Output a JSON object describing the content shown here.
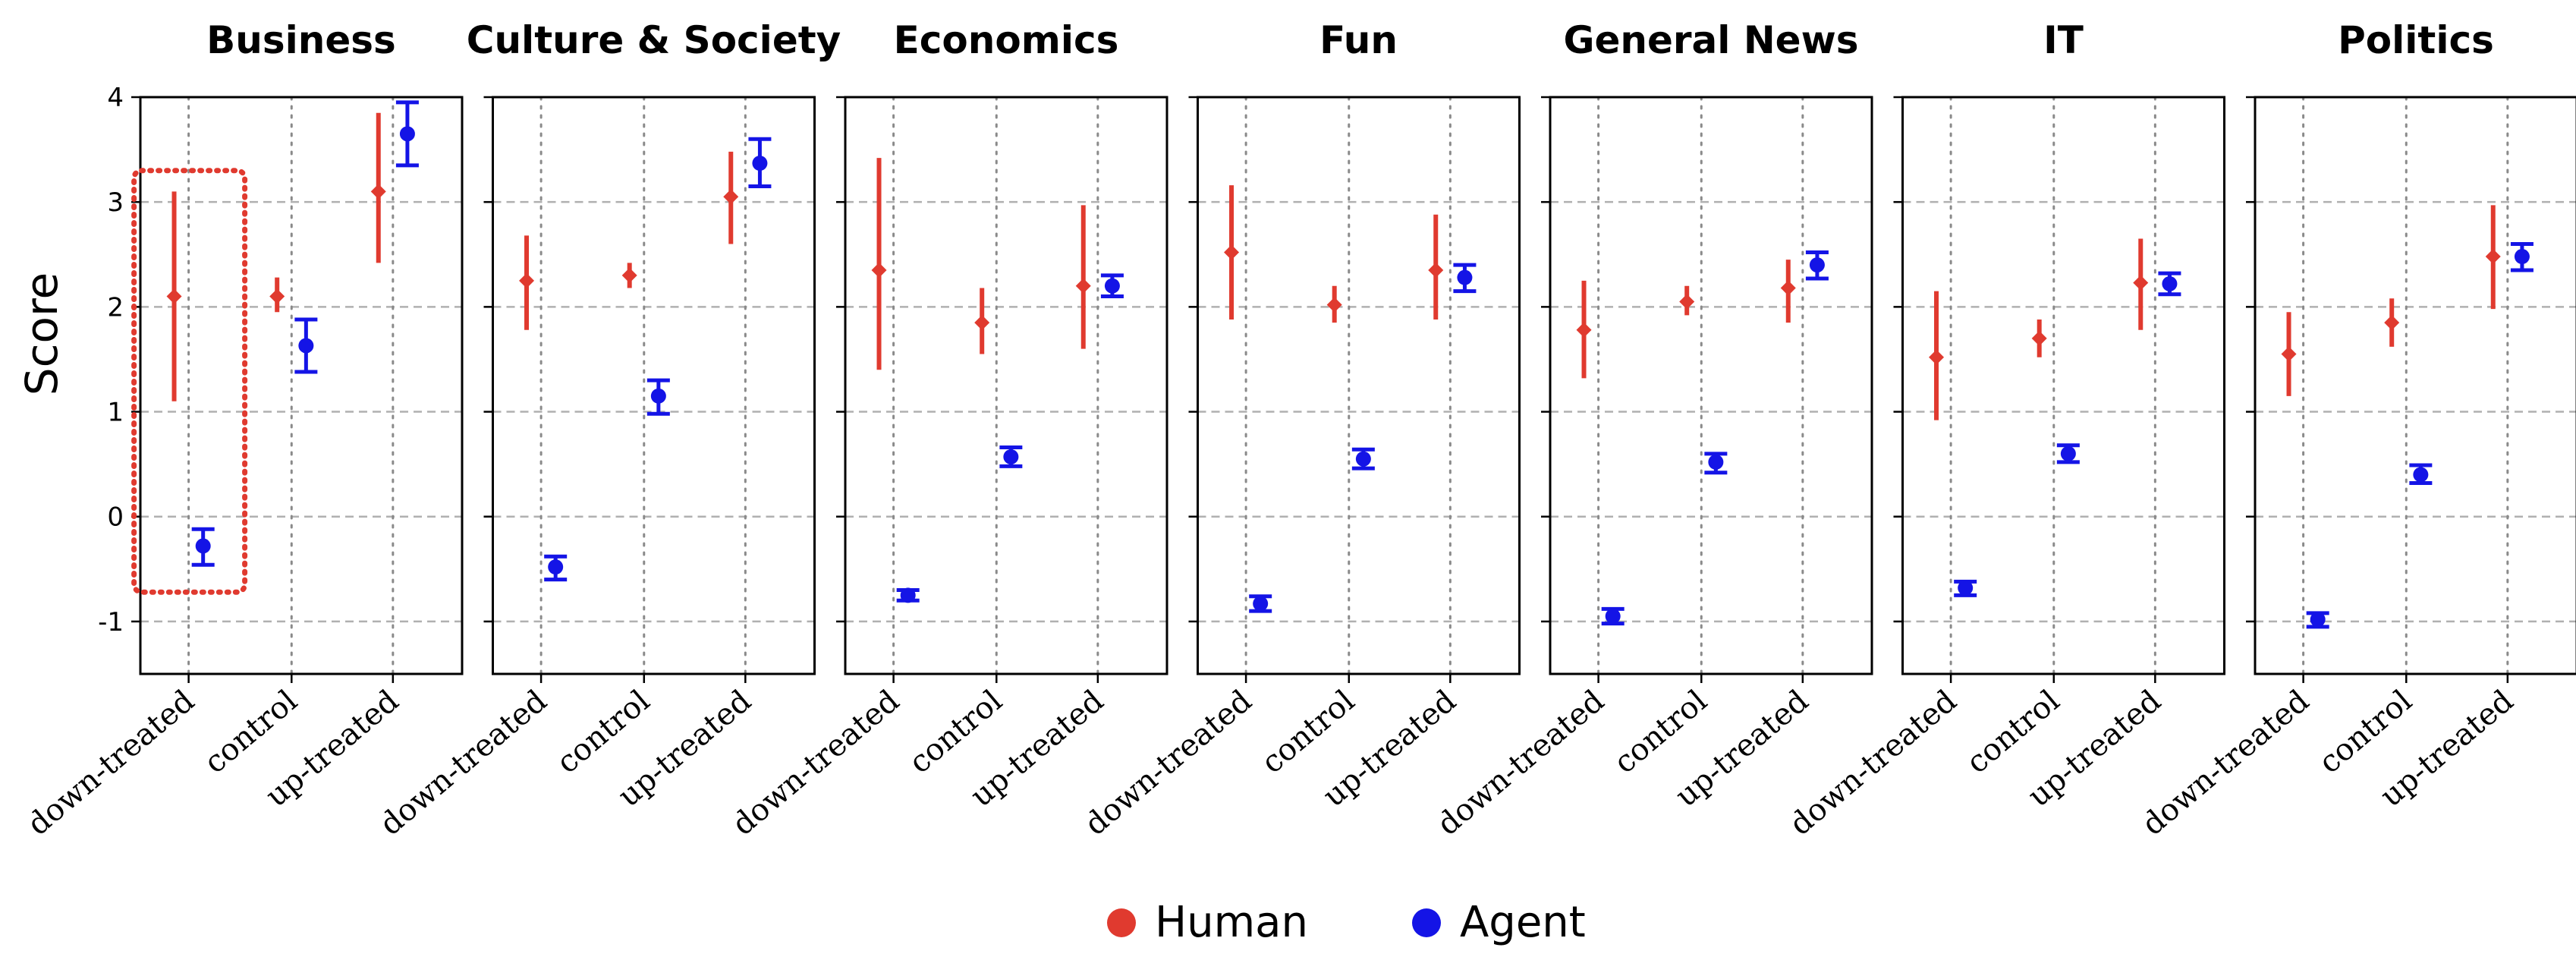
{
  "chart_data": {
    "type": "scatter",
    "ylabel": "Score",
    "ylim": [
      -1.5,
      4
    ],
    "yticks": [
      -1,
      0,
      1,
      2,
      3,
      4
    ],
    "ytick_labels": [
      "-1",
      "0",
      "1",
      "2",
      "3",
      "4"
    ],
    "categories": [
      "down-treated",
      "control",
      "up-treated"
    ],
    "grid": "dashed horizontal and dotted vertical",
    "legend_position": "bottom-center",
    "highlight": {
      "panel": "Business",
      "category": "down-treated",
      "style": "red dotted box"
    },
    "colors": {
      "Human": "#e03a2f",
      "Agent": "#1414e6",
      "highlight": "#e03a2f"
    },
    "series": [
      {
        "name": "Human",
        "marker": "diamond",
        "error_bar": "line"
      },
      {
        "name": "Agent",
        "marker": "circle",
        "error_bar": "capped"
      }
    ],
    "panels": [
      {
        "title": "Business",
        "Human": [
          {
            "mean": 2.1,
            "lo": 1.1,
            "hi": 3.1
          },
          {
            "mean": 2.1,
            "lo": 1.95,
            "hi": 2.28
          },
          {
            "mean": 3.1,
            "lo": 2.42,
            "hi": 3.85
          }
        ],
        "Agent": [
          {
            "mean": -0.28,
            "lo": -0.46,
            "hi": -0.12
          },
          {
            "mean": 1.63,
            "lo": 1.38,
            "hi": 1.88
          },
          {
            "mean": 3.65,
            "lo": 3.35,
            "hi": 3.95
          }
        ]
      },
      {
        "title": "Culture & Society",
        "Human": [
          {
            "mean": 2.25,
            "lo": 1.78,
            "hi": 2.68
          },
          {
            "mean": 2.3,
            "lo": 2.18,
            "hi": 2.42
          },
          {
            "mean": 3.05,
            "lo": 2.6,
            "hi": 3.48
          }
        ],
        "Agent": [
          {
            "mean": -0.48,
            "lo": -0.6,
            "hi": -0.38
          },
          {
            "mean": 1.15,
            "lo": 0.98,
            "hi": 1.3
          },
          {
            "mean": 3.37,
            "lo": 3.15,
            "hi": 3.6
          }
        ]
      },
      {
        "title": "Economics",
        "Human": [
          {
            "mean": 2.35,
            "lo": 1.4,
            "hi": 3.42
          },
          {
            "mean": 1.85,
            "lo": 1.55,
            "hi": 2.18
          },
          {
            "mean": 2.2,
            "lo": 1.6,
            "hi": 2.97
          }
        ],
        "Agent": [
          {
            "mean": -0.75,
            "lo": -0.8,
            "hi": -0.7
          },
          {
            "mean": 0.57,
            "lo": 0.48,
            "hi": 0.66
          },
          {
            "mean": 2.2,
            "lo": 2.1,
            "hi": 2.3
          }
        ]
      },
      {
        "title": "Fun",
        "Human": [
          {
            "mean": 2.52,
            "lo": 1.88,
            "hi": 3.16
          },
          {
            "mean": 2.02,
            "lo": 1.85,
            "hi": 2.2
          },
          {
            "mean": 2.35,
            "lo": 1.88,
            "hi": 2.88
          }
        ],
        "Agent": [
          {
            "mean": -0.83,
            "lo": -0.9,
            "hi": -0.76
          },
          {
            "mean": 0.55,
            "lo": 0.46,
            "hi": 0.64
          },
          {
            "mean": 2.28,
            "lo": 2.15,
            "hi": 2.4
          }
        ]
      },
      {
        "title": "General News",
        "Human": [
          {
            "mean": 1.78,
            "lo": 1.32,
            "hi": 2.25
          },
          {
            "mean": 2.05,
            "lo": 1.92,
            "hi": 2.2
          },
          {
            "mean": 2.18,
            "lo": 1.85,
            "hi": 2.45
          }
        ],
        "Agent": [
          {
            "mean": -0.95,
            "lo": -1.02,
            "hi": -0.88
          },
          {
            "mean": 0.52,
            "lo": 0.42,
            "hi": 0.6
          },
          {
            "mean": 2.4,
            "lo": 2.27,
            "hi": 2.52
          }
        ]
      },
      {
        "title": "IT",
        "Human": [
          {
            "mean": 1.52,
            "lo": 0.92,
            "hi": 2.15
          },
          {
            "mean": 1.7,
            "lo": 1.52,
            "hi": 1.88
          },
          {
            "mean": 2.23,
            "lo": 1.78,
            "hi": 2.65
          }
        ],
        "Agent": [
          {
            "mean": -0.68,
            "lo": -0.75,
            "hi": -0.62
          },
          {
            "mean": 0.6,
            "lo": 0.52,
            "hi": 0.68
          },
          {
            "mean": 2.22,
            "lo": 2.12,
            "hi": 2.32
          }
        ]
      },
      {
        "title": "Politics",
        "Human": [
          {
            "mean": 1.55,
            "lo": 1.15,
            "hi": 1.95
          },
          {
            "mean": 1.85,
            "lo": 1.62,
            "hi": 2.08
          },
          {
            "mean": 2.48,
            "lo": 1.98,
            "hi": 2.97
          }
        ],
        "Agent": [
          {
            "mean": -0.98,
            "lo": -1.05,
            "hi": -0.92
          },
          {
            "mean": 0.4,
            "lo": 0.32,
            "hi": 0.49
          },
          {
            "mean": 2.48,
            "lo": 2.35,
            "hi": 2.6
          }
        ]
      }
    ]
  }
}
